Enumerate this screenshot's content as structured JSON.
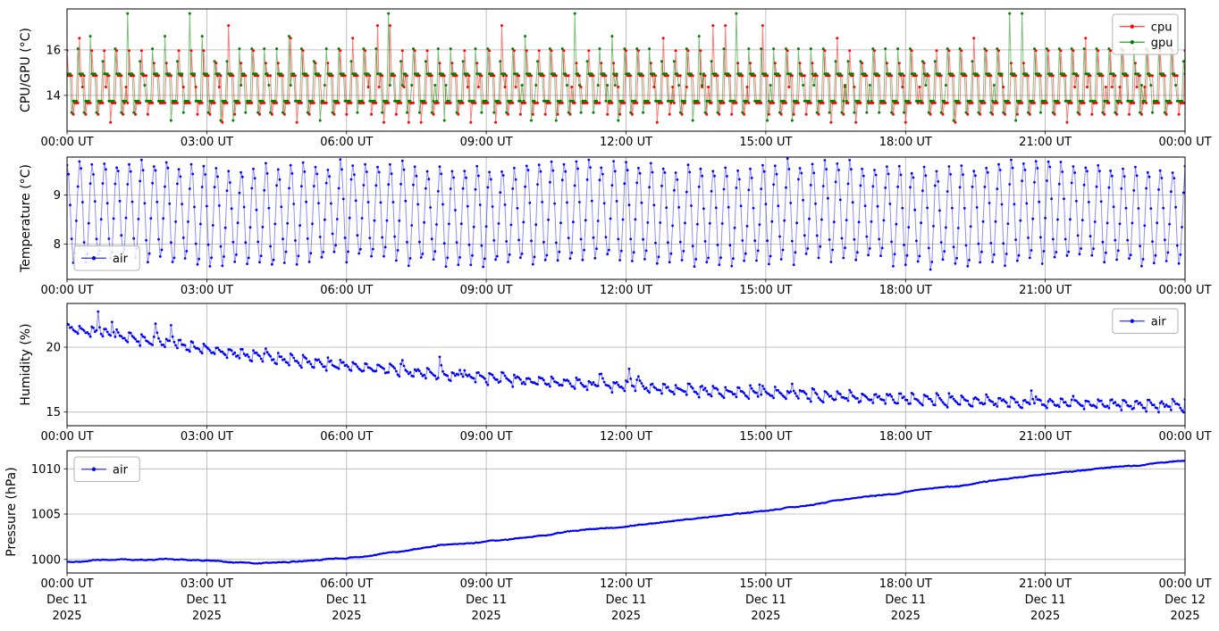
{
  "figure": {
    "background": "#ffffff",
    "grid_color": "#b0b0b0",
    "axis_color": "#000000",
    "legend_edge_color": "#b3b3b3",
    "tick_label_color": "#000000"
  },
  "chart_data": {
    "type": "line",
    "title": "",
    "layout_hint": "four stacked time-series panels sharing a 24-hour x axis, grid on",
    "x_axis": {
      "start_label": "00:00 UT Dec 11 2025",
      "end_label": "00:00 UT Dec 12 2025",
      "tick_interval_hours": 3,
      "tick_labels": [
        "00:00 UT",
        "03:00 UT",
        "06:00 UT",
        "09:00 UT",
        "12:00 UT",
        "15:00 UT",
        "18:00 UT",
        "21:00 UT",
        "00:00 UT"
      ],
      "bottom_date_labels": [
        "Dec 11",
        "Dec 11",
        "Dec 11",
        "Dec 11",
        "Dec 11",
        "Dec 11",
        "Dec 11",
        "Dec 11",
        "Dec 12"
      ],
      "bottom_year_labels": [
        "2025",
        "2025",
        "2025",
        "2025",
        "2025",
        "2025",
        "2025",
        "2025",
        "2025"
      ]
    },
    "panels": [
      {
        "name": "cpu-gpu",
        "ylabel": "CPU/GPU (°C)",
        "ylim": [
          12.43,
          17.8
        ],
        "yticks": [
          14,
          16
        ],
        "grid": true,
        "legend": {
          "position": "top-right",
          "entries": [
            "cpu",
            "gpu"
          ]
        },
        "series": [
          {
            "label": "cpu",
            "color": "#ff0000",
            "marker": "point",
            "sample_minutes": 2,
            "seed": 11,
            "phase_samples": 0,
            "level_offset": -0.03,
            "pattern": {
              "kind": "thermostat_square",
              "period_minutes": 16,
              "high": 14.9,
              "low": 13.7,
              "mid": 14.4,
              "spike_levels": [
                15.45,
                16.0,
                16.55,
                17.1
              ],
              "spike_weights": [
                0.27,
                0.55,
                0.11,
                0.07
              ],
              "dip_levels": [
                13.2,
                12.85,
                13.7
              ],
              "dip_weights": [
                0.6,
                0.12,
                0.28
              ]
            },
            "observed_range": [
              12.85,
              17.1
            ]
          },
          {
            "label": "gpu",
            "color": "#008000",
            "marker": "point",
            "sample_minutes": 2,
            "seed": 23,
            "phase_samples": 1,
            "level_offset": 0.05,
            "pattern": {
              "kind": "thermostat_square",
              "period_minutes": 16,
              "high": 14.9,
              "low": 13.7,
              "mid": 14.4,
              "spike_levels": [
                15.45,
                16.0,
                16.55,
                17.55
              ],
              "spike_weights": [
                0.27,
                0.55,
                0.11,
                0.07
              ],
              "dip_levels": [
                13.2,
                12.85,
                13.7
              ],
              "dip_weights": [
                0.55,
                0.15,
                0.3
              ]
            },
            "observed_range": [
              12.85,
              17.6
            ]
          }
        ]
      },
      {
        "name": "temperature",
        "ylabel": "Temperature (°C)",
        "ylim": [
          7.28,
          9.77
        ],
        "yticks": [
          8,
          9
        ],
        "grid": true,
        "legend": {
          "position": "bottom-left",
          "entries": [
            "air"
          ]
        },
        "series": [
          {
            "label": "air",
            "color": "#0000ff",
            "marker": "point",
            "sample_minutes": 2,
            "seed": 5,
            "pattern": {
              "kind": "oscillation",
              "period_minutes": 16,
              "mean": 8.62,
              "amplitude": 0.98,
              "amplitude_jitter": 0.09,
              "phase_fraction": 0.22,
              "mean_wobble": 0.07,
              "wobble_period_hours": 5,
              "noise": 0.05
            },
            "observed_range": [
              7.55,
              9.75
            ]
          }
        ]
      },
      {
        "name": "humidity",
        "ylabel": "Humidity (%)",
        "ylim": [
          13.95,
          23.37
        ],
        "yticks": [
          15,
          20
        ],
        "grid": true,
        "legend": {
          "position": "top-right",
          "entries": [
            "air"
          ]
        },
        "series": [
          {
            "label": "air",
            "color": "#0000ff",
            "marker": "point",
            "sample_minutes": 2,
            "seed": 17,
            "pattern": {
              "kind": "decaying_sawtooth",
              "period_minutes": 16,
              "saw_amplitude": 0.42,
              "noise": 0.13,
              "spike_probability": 0.035,
              "spike_min": 0.7,
              "spike_max": 1.9,
              "hourly_baseline": [
                21.4,
                20.9,
                20.35,
                19.75,
                19.25,
                18.85,
                18.5,
                18.15,
                17.85,
                17.6,
                17.35,
                17.15,
                16.95,
                16.75,
                16.55,
                16.4,
                16.25,
                16.1,
                15.95,
                15.85,
                15.75,
                15.65,
                15.6,
                15.5,
                15.45
              ]
            },
            "observed_range": [
              14.9,
              23.3
            ]
          }
        ]
      },
      {
        "name": "pressure",
        "ylabel": "Pressure (hPa)",
        "ylim": [
          998.5,
          1012.0
        ],
        "yticks": [
          1000,
          1005,
          1010
        ],
        "grid": true,
        "legend": {
          "position": "top-left",
          "entries": [
            "air"
          ]
        },
        "series": [
          {
            "label": "air",
            "color": "#0000ff",
            "marker": "point",
            "sample_minutes": 1,
            "seed": 9,
            "pattern": {
              "kind": "hourly_trend",
              "noise": 0.05,
              "hourly_values": [
                999.75,
                999.9,
                1000.0,
                999.8,
                999.5,
                999.7,
                1000.15,
                1000.8,
                1001.5,
                1002.0,
                1002.55,
                1003.15,
                1003.7,
                1004.3,
                1004.9,
                1005.45,
                1006.1,
                1006.75,
                1007.4,
                1008.05,
                1008.7,
                1009.35,
                1009.9,
                1010.35,
                1011.0
              ]
            },
            "observed_range": [
              999.4,
              1011.1
            ]
          }
        ]
      }
    ]
  }
}
